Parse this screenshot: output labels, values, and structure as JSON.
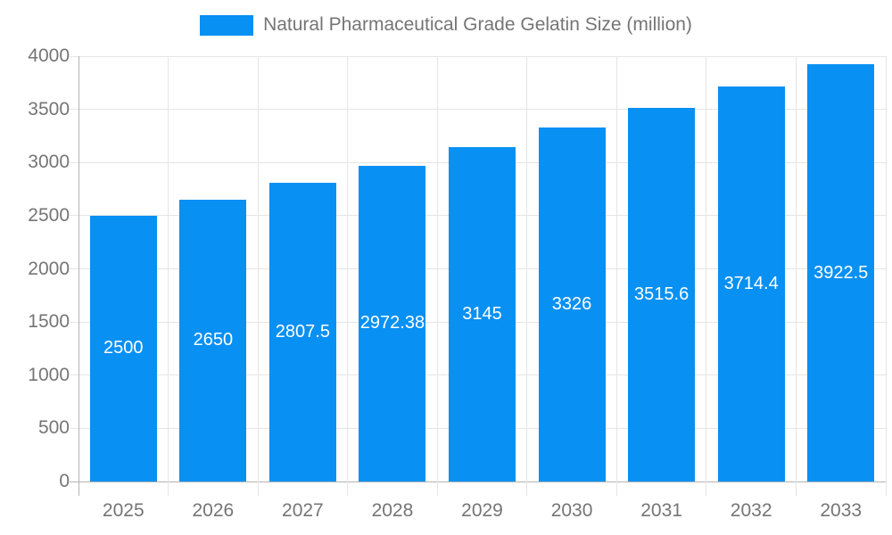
{
  "chart_data": {
    "type": "bar",
    "title": "Natural Pharmaceutical Grade Gelatin Size (million)",
    "categories": [
      "2025",
      "2026",
      "2027",
      "2028",
      "2029",
      "2030",
      "2031",
      "2032",
      "2033"
    ],
    "values": [
      2500,
      2650,
      2807.5,
      2972.38,
      3145,
      3326,
      3515.6,
      3714.4,
      3922.5
    ],
    "bar_labels": [
      "2500",
      "2650",
      "2807.5",
      "2972.38",
      "3145",
      "3326",
      "3515.6",
      "3714.4",
      "3922.5"
    ],
    "xlabel": "",
    "ylabel": "",
    "ylim": [
      0,
      4000
    ],
    "y_ticks": [
      0,
      500,
      1000,
      1500,
      2000,
      2500,
      3000,
      3500,
      4000
    ],
    "grid": true,
    "legend_position": "top",
    "colors": {
      "bar": "#0890f3",
      "label_text": "#ffffff",
      "axis_text": "#757575",
      "grid": "#e5e5e5",
      "axis_line": "#b3b3b3",
      "background": "#ffffff"
    }
  }
}
